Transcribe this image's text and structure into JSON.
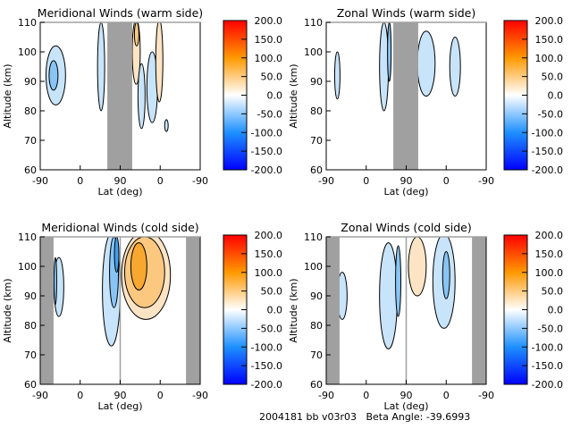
{
  "chart_data": [
    {
      "type": "heatmap",
      "title": "Meridional Winds (warm side)",
      "xlabel": "Lat (deg)",
      "ylabel": "Altitude (km)",
      "x_tick_labels": [
        "-90",
        "0",
        "90",
        "0",
        "-90"
      ],
      "y_ticks": [
        60,
        70,
        80,
        90,
        100,
        110
      ],
      "ylim": [
        60,
        110
      ],
      "no_data_bands": [
        [
          151,
          207
        ]
      ],
      "regions": [
        {
          "x": 35,
          "alt": 92,
          "rx": 22,
          "ry": 10,
          "value": -25
        },
        {
          "x": 30,
          "alt": 92,
          "rx": 10,
          "ry": 5,
          "value": -50
        },
        {
          "x": 137,
          "alt": 95,
          "rx": 8,
          "ry": 15,
          "value": -25
        },
        {
          "x": 216,
          "alt": 100,
          "rx": 9,
          "ry": 11,
          "value": 25
        },
        {
          "x": 217,
          "alt": 106,
          "rx": 5,
          "ry": 4,
          "value": 50
        },
        {
          "x": 228,
          "alt": 85,
          "rx": 8,
          "ry": 11,
          "value": -25
        },
        {
          "x": 252,
          "alt": 88,
          "rx": 12,
          "ry": 12,
          "value": -25
        },
        {
          "x": 268,
          "alt": 97,
          "rx": 8,
          "ry": 14,
          "value": 25
        },
        {
          "x": 284,
          "alt": 75,
          "rx": 4,
          "ry": 2,
          "value": -25
        }
      ]
    },
    {
      "type": "heatmap",
      "title": "Zonal Winds (warm side)",
      "xlabel": "Lat (deg)",
      "ylabel": "Altitude (km)",
      "x_tick_labels": [
        "-90",
        "0",
        "90",
        "0",
        "-90"
      ],
      "y_ticks": [
        60,
        70,
        80,
        90,
        100,
        110
      ],
      "ylim": [
        60,
        110
      ],
      "no_data_bands": [
        [
          151,
          207
        ]
      ],
      "regions": [
        {
          "x": 25,
          "alt": 92,
          "rx": 6,
          "ry": 8,
          "value": -25
        },
        {
          "x": 130,
          "alt": 95,
          "rx": 10,
          "ry": 15,
          "value": -25
        },
        {
          "x": 142,
          "alt": 100,
          "rx": 4,
          "ry": 10,
          "value": -50
        },
        {
          "x": 225,
          "alt": 96,
          "rx": 20,
          "ry": 11,
          "value": -25
        },
        {
          "x": 290,
          "alt": 95,
          "rx": 12,
          "ry": 10,
          "value": -25
        }
      ]
    },
    {
      "type": "heatmap",
      "title": "Meridional Winds (cold side)",
      "xlabel": "Lat (deg)",
      "ylabel": "Altitude (km)",
      "x_tick_labels": [
        "-90",
        "0",
        "90",
        "0",
        "-90"
      ],
      "y_ticks": [
        60,
        70,
        80,
        90,
        100,
        110
      ],
      "ylim": [
        60,
        110
      ],
      "no_data_bands": [
        [
          0,
          30
        ],
        [
          328,
          360
        ]
      ],
      "regions": [
        {
          "x": 42,
          "alt": 93,
          "rx": 11,
          "ry": 10,
          "value": -25
        },
        {
          "x": 34,
          "alt": 95,
          "rx": 3,
          "ry": 8,
          "value": -50
        },
        {
          "x": 160,
          "alt": 92,
          "rx": 20,
          "ry": 19,
          "value": -25
        },
        {
          "x": 166,
          "alt": 98,
          "rx": 10,
          "ry": 12,
          "value": -50
        },
        {
          "x": 172,
          "alt": 104,
          "rx": 5,
          "ry": 6,
          "value": -75
        },
        {
          "x": 238,
          "alt": 97,
          "rx": 55,
          "ry": 15,
          "value": 25
        },
        {
          "x": 235,
          "alt": 98,
          "rx": 45,
          "ry": 12,
          "value": 50
        },
        {
          "x": 222,
          "alt": 100,
          "rx": 18,
          "ry": 8,
          "value": 75
        }
      ]
    },
    {
      "type": "heatmap",
      "title": "Zonal Winds (cold side)",
      "xlabel": "Lat (deg)",
      "ylabel": "Altitude (km)",
      "x_tick_labels": [
        "-90",
        "0",
        "90",
        "0",
        "-90"
      ],
      "y_ticks": [
        60,
        70,
        80,
        90,
        100,
        110
      ],
      "ylim": [
        60,
        110
      ],
      "no_data_bands": [
        [
          0,
          30
        ],
        [
          328,
          360
        ]
      ],
      "regions": [
        {
          "x": 36,
          "alt": 90,
          "rx": 11,
          "ry": 8,
          "value": -25
        },
        {
          "x": 140,
          "alt": 90,
          "rx": 20,
          "ry": 18,
          "value": -25
        },
        {
          "x": 162,
          "alt": 95,
          "rx": 6,
          "ry": 12,
          "value": -50
        },
        {
          "x": 205,
          "alt": 100,
          "rx": 20,
          "ry": 10,
          "value": 25
        },
        {
          "x": 265,
          "alt": 95,
          "rx": 25,
          "ry": 16,
          "value": -25
        },
        {
          "x": 270,
          "alt": 97,
          "rx": 8,
          "ry": 8,
          "value": -50
        }
      ]
    }
  ],
  "colorbar": {
    "ticks": [
      "200.0",
      "150.0",
      "100.0",
      "50.0",
      "0.0",
      "-50.0",
      "-100.0",
      "-150.0",
      "-200.0"
    ],
    "range": [
      -200,
      200
    ],
    "colors": {
      "min": "#0000ff",
      "mid_low": "#1e90ff",
      "zero": "#ffffff",
      "mid_high": "#ff9900",
      "max": "#ff0000"
    }
  },
  "no_data_color": "#a0a0a0",
  "footer": "2004181 bb v03r03   Beta Angle: -39.6993"
}
